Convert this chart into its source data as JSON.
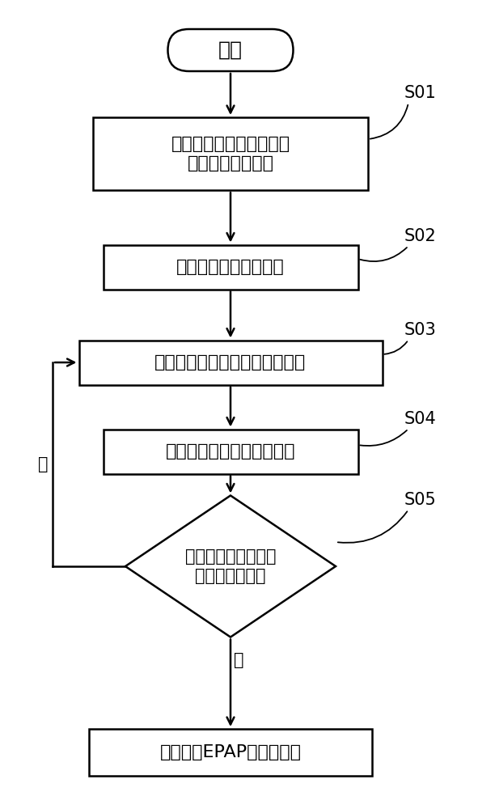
{
  "bg_color": "#ffffff",
  "line_color": "#000000",
  "start_text": "开始",
  "s01_text": "采集用户在预设时间段内\n呼吸时的呼吸信号",
  "s02_text": "提取呼吸指标特征信号",
  "s03_text": "调整呼吸机的呼气阶段气道正压",
  "s04_text": "采集调整后的用户呼吸信号",
  "s05_text": "判断调整后的呼吸指\n标特征是否恶化",
  "end_text": "停止增大EPAP的下探程度",
  "label_s01": "S01",
  "label_s02": "S02",
  "label_s03": "S03",
  "label_s04": "S04",
  "label_s05": "S05",
  "yes_label": "是",
  "no_label": "否",
  "font_size_main": 16,
  "font_size_label": 15,
  "font_size_yn": 15,
  "lw": 1.8
}
